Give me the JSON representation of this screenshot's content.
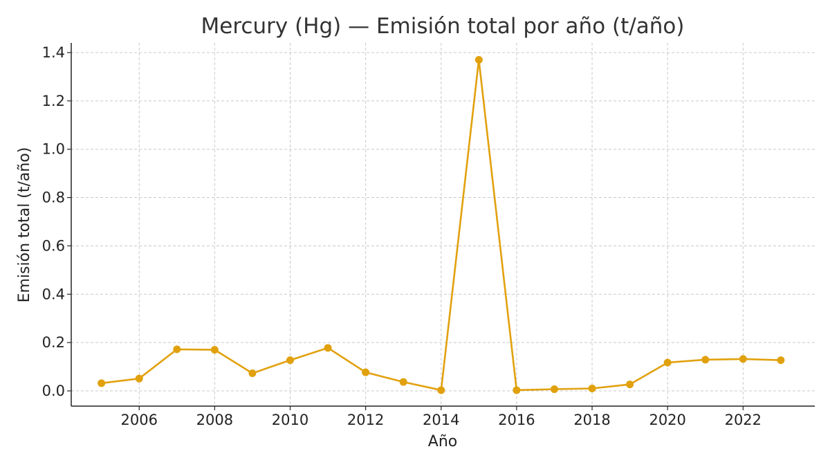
{
  "chart_data": {
    "type": "line",
    "title": "Mercury (Hg) — Emisión total por año (t/año)",
    "xlabel": "Año",
    "ylabel": "Emisión total (t/año)",
    "xlim": [
      2004.2,
      2023.9
    ],
    "ylim": [
      -0.063,
      1.44
    ],
    "xticks": [
      2006,
      2008,
      2010,
      2012,
      2014,
      2016,
      2018,
      2020,
      2022
    ],
    "yticks": [
      0.0,
      0.2,
      0.4,
      0.6,
      0.8,
      1.0,
      1.2,
      1.4
    ],
    "ytick_labels": [
      "0.0",
      "0.2",
      "0.4",
      "0.6",
      "0.8",
      "1.0",
      "1.2",
      "1.4"
    ],
    "grid": true,
    "color": "#E1A10D",
    "series": [
      {
        "x": [
          2005,
          2006,
          2007,
          2008,
          2009,
          2010,
          2011,
          2012,
          2013,
          2014,
          2015,
          2016,
          2017,
          2018,
          2019,
          2020,
          2021,
          2022,
          2023
        ],
        "y": [
          0.032,
          0.051,
          0.172,
          0.17,
          0.073,
          0.127,
          0.178,
          0.077,
          0.037,
          0.003,
          1.37,
          0.003,
          0.007,
          0.01,
          0.027,
          0.117,
          0.129,
          0.132,
          0.127
        ]
      }
    ]
  }
}
